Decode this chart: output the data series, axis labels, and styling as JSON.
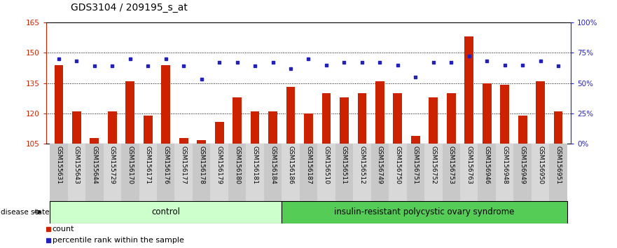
{
  "title": "GDS3104 / 209195_s_at",
  "samples": [
    "GSM155631",
    "GSM155643",
    "GSM155644",
    "GSM155729",
    "GSM156170",
    "GSM156171",
    "GSM156176",
    "GSM156177",
    "GSM156178",
    "GSM156179",
    "GSM156180",
    "GSM156181",
    "GSM156184",
    "GSM156186",
    "GSM156187",
    "GSM156510",
    "GSM156511",
    "GSM156512",
    "GSM156749",
    "GSM156750",
    "GSM156751",
    "GSM156752",
    "GSM156753",
    "GSM156763",
    "GSM156946",
    "GSM156948",
    "GSM156949",
    "GSM156950",
    "GSM156951"
  ],
  "bar_values": [
    144,
    121,
    108,
    121,
    136,
    119,
    144,
    108,
    107,
    116,
    128,
    121,
    121,
    133,
    120,
    130,
    128,
    130,
    136,
    130,
    109,
    128,
    130,
    158,
    135,
    134,
    119,
    136,
    121
  ],
  "dot_values": [
    70,
    68,
    64,
    64,
    70,
    64,
    70,
    64,
    53,
    67,
    67,
    64,
    67,
    62,
    70,
    65,
    67,
    67,
    67,
    65,
    55,
    67,
    67,
    72,
    68,
    65,
    65,
    68,
    64
  ],
  "control_count": 13,
  "ylim_left": [
    105,
    165
  ],
  "ylim_right": [
    0,
    100
  ],
  "yticks_left": [
    105,
    120,
    135,
    150,
    165
  ],
  "yticks_right": [
    0,
    25,
    50,
    75,
    100
  ],
  "ytick_labels_right": [
    "0%",
    "25%",
    "50%",
    "75%",
    "100%"
  ],
  "bar_color": "#cc2200",
  "dot_color": "#2222bb",
  "control_label": "control",
  "disease_label": "insulin-resistant polycystic ovary syndrome",
  "disease_state_label": "disease state",
  "legend_bar": "count",
  "legend_dot": "percentile rank within the sample",
  "control_bg": "#ccffcc",
  "disease_bg": "#55cc55",
  "title_fontsize": 10,
  "label_fontsize": 6.5,
  "axis_left_color": "#cc2200",
  "axis_right_color": "#2222bb"
}
